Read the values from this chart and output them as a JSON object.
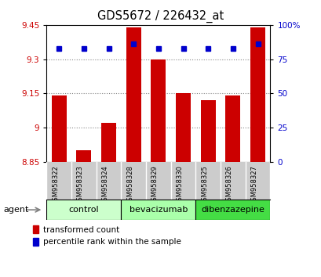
{
  "title": "GDS5672 / 226432_at",
  "samples": [
    "GSM958322",
    "GSM958323",
    "GSM958324",
    "GSM958328",
    "GSM958329",
    "GSM958330",
    "GSM958325",
    "GSM958326",
    "GSM958327"
  ],
  "bar_values": [
    9.14,
    8.9,
    9.02,
    9.44,
    9.3,
    9.15,
    9.12,
    9.14,
    9.44
  ],
  "percentile_values": [
    83,
    83,
    83,
    86,
    83,
    83,
    83,
    83,
    86
  ],
  "bar_bottom": 8.85,
  "ylim_left": [
    8.85,
    9.45
  ],
  "ylim_right": [
    0,
    100
  ],
  "yticks_left": [
    8.85,
    9.0,
    9.15,
    9.3,
    9.45
  ],
  "ytick_labels_left": [
    "8.85",
    "9",
    "9.15",
    "9.3",
    "9.45"
  ],
  "yticks_right": [
    0,
    25,
    50,
    75,
    100
  ],
  "ytick_labels_right": [
    "0",
    "25",
    "50",
    "75",
    "100%"
  ],
  "bar_color": "#cc0000",
  "dot_color": "#0000cc",
  "groups": [
    {
      "label": "control",
      "indices": [
        0,
        1,
        2
      ],
      "color": "#ccffcc"
    },
    {
      "label": "bevacizumab",
      "indices": [
        3,
        4,
        5
      ],
      "color": "#aaffaa"
    },
    {
      "label": "dibenzazepine",
      "indices": [
        6,
        7,
        8
      ],
      "color": "#44dd44"
    }
  ],
  "agent_label": "agent",
  "legend_bar_label": "transformed count",
  "legend_dot_label": "percentile rank within the sample",
  "grid_color": "#888888",
  "tick_label_color_left": "#cc0000",
  "tick_label_color_right": "#0000cc",
  "xtick_bg_color": "#cccccc",
  "bar_width": 0.6
}
